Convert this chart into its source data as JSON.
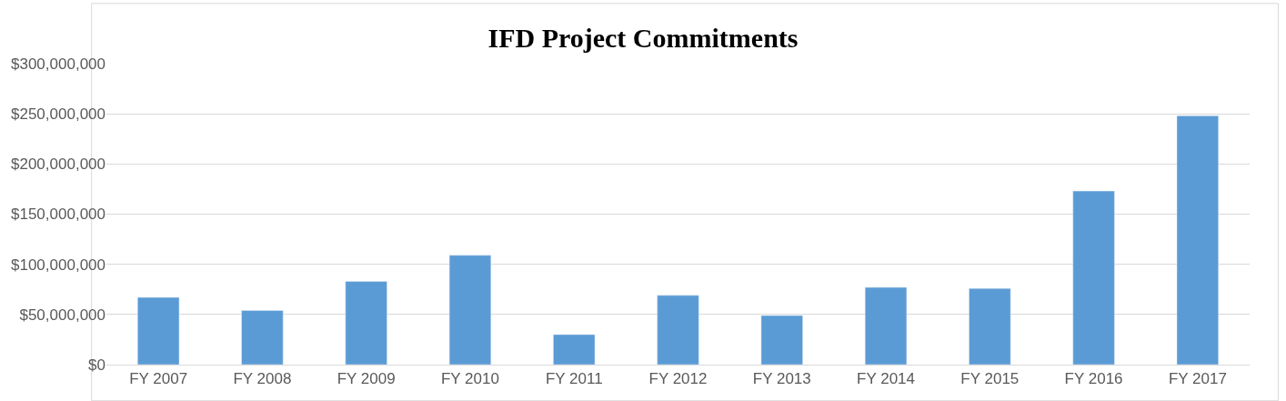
{
  "chart_data": {
    "type": "bar",
    "title": "IFD Project Commitments",
    "categories": [
      "FY 2007",
      "FY 2008",
      "FY 2009",
      "FY 2010",
      "FY 2011",
      "FY 2012",
      "FY 2013",
      "FY 2014",
      "FY 2015",
      "FY 2016",
      "FY 2017"
    ],
    "values": [
      67000000,
      54000000,
      83000000,
      109000000,
      30000000,
      69000000,
      49000000,
      77000000,
      76000000,
      173000000,
      248000000
    ],
    "color": "#5b9bd5",
    "ylim": [
      0,
      300000000
    ],
    "yticks": [
      {
        "value": 0,
        "label": "$0"
      },
      {
        "value": 50000000,
        "label": "$50,000,000"
      },
      {
        "value": 100000000,
        "label": "$100,000,000"
      },
      {
        "value": 150000000,
        "label": "$150,000,000"
      },
      {
        "value": 200000000,
        "label": "$200,000,000"
      },
      {
        "value": 250000000,
        "label": "$250,000,000"
      },
      {
        "value": 300000000,
        "label": "$300,000,000"
      }
    ],
    "grid": "y",
    "legend": false
  }
}
